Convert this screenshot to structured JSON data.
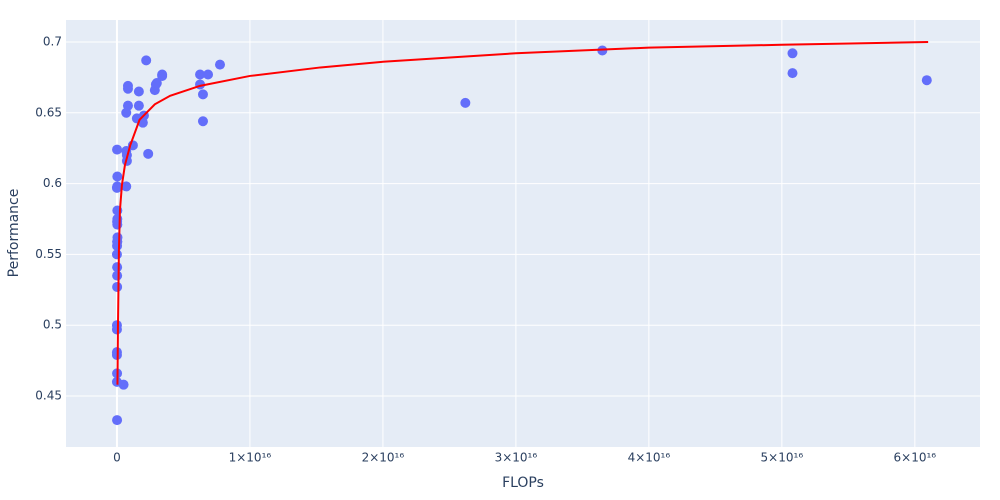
{
  "chart_data": {
    "type": "scatter",
    "xlabel": "FLOPs",
    "ylabel": "Performance",
    "xlim": [
      -3830000000000000.0,
      6.49e+16
    ],
    "ylim": [
      0.414,
      0.7155
    ],
    "xticks": [
      0,
      {
        "value": 1e+16,
        "label": "1×10¹⁶"
      },
      {
        "value": 2e+16,
        "label": "2×10¹⁶"
      },
      {
        "value": 3e+16,
        "label": "3×10¹⁶"
      },
      {
        "value": 4e+16,
        "label": "4×10¹⁶"
      },
      {
        "value": 5e+16,
        "label": "5×10¹⁶"
      },
      {
        "value": 6e+16,
        "label": "6×10¹⁶"
      }
    ],
    "yticks": [
      0.45,
      0.5,
      0.55,
      0.6,
      0.65,
      0.7
    ],
    "grid": true,
    "background": "#e5ecf6",
    "series": [
      {
        "mode": "markers",
        "color": "#636efa",
        "x": [
          10000000000000.0,
          500000000000000.0,
          0,
          10000000000000.0,
          0,
          0,
          0,
          0,
          15000000000000.0,
          15000000000000.0,
          15000000000000.0,
          0,
          10000000000000.0,
          15000000000000.0,
          30000000000000.0,
          40000000000000.0,
          30000000000000.0,
          30000000000000.0,
          15000000000000.0,
          30000000000000.0,
          0,
          25000000000000.0,
          700000000000000.0,
          30000000000000.0,
          10000000000000.0,
          750000000000000.0,
          750000000000000.0,
          700000000000000.0,
          1200000000000000.0,
          700000000000000.0,
          830000000000000.0,
          830000000000000.0,
          830000000000000.0,
          1500000000000000.0,
          1650000000000000.0,
          1650000000000000.0,
          1950000000000000.0,
          2030000000000000.0,
          2200000000000000.0,
          2350000000000000.0,
          2850000000000000.0,
          2930000000000000.0,
          3000000000000000.0,
          3400000000000000.0,
          3400000000000000.0,
          6250000000000000.0,
          6250000000000000.0,
          6470000000000000.0,
          6470000000000000.0,
          6850000000000000.0,
          7750000000000000.0,
          2.62e+16,
          3.65e+16,
          5.08e+16,
          5.08e+16,
          6.09e+16
        ],
        "values": [
          0.433,
          0.458,
          0.46,
          0.466,
          0.479,
          0.481,
          0.497,
          0.5,
          0.527,
          0.535,
          0.541,
          0.55,
          0.556,
          0.559,
          0.559,
          0.562,
          0.571,
          0.575,
          0.573,
          0.581,
          0.597,
          0.598,
          0.598,
          0.605,
          0.624,
          0.616,
          0.62,
          0.623,
          0.627,
          0.65,
          0.655,
          0.667,
          0.669,
          0.646,
          0.655,
          0.665,
          0.643,
          0.648,
          0.687,
          0.621,
          0.666,
          0.67,
          0.671,
          0.676,
          0.677,
          0.677,
          0.67,
          0.663,
          0.644,
          0.677,
          0.684,
          0.657,
          0.694,
          0.692,
          0.678,
          0.673
        ]
      },
      {
        "mode": "lines",
        "color": "#ff0000",
        "x": [
          40000000000000.0,
          75000000000000.0,
          150000000000000.0,
          225000000000000.0,
          375000000000000.0,
          600000000000000.0,
          1000000000000000.0,
          1700000000000000.0,
          2850000000000000.0,
          4000000000000000.0,
          6250000000000000.0,
          1e+16,
          1.53e+16,
          2e+16,
          3e+16,
          4e+16,
          5e+16,
          6.1e+16
        ],
        "values": [
          0.458,
          0.497,
          0.553,
          0.581,
          0.599,
          0.613,
          0.627,
          0.645,
          0.656,
          0.662,
          0.669,
          0.676,
          0.682,
          0.686,
          0.692,
          0.696,
          0.698,
          0.7
        ]
      }
    ]
  }
}
